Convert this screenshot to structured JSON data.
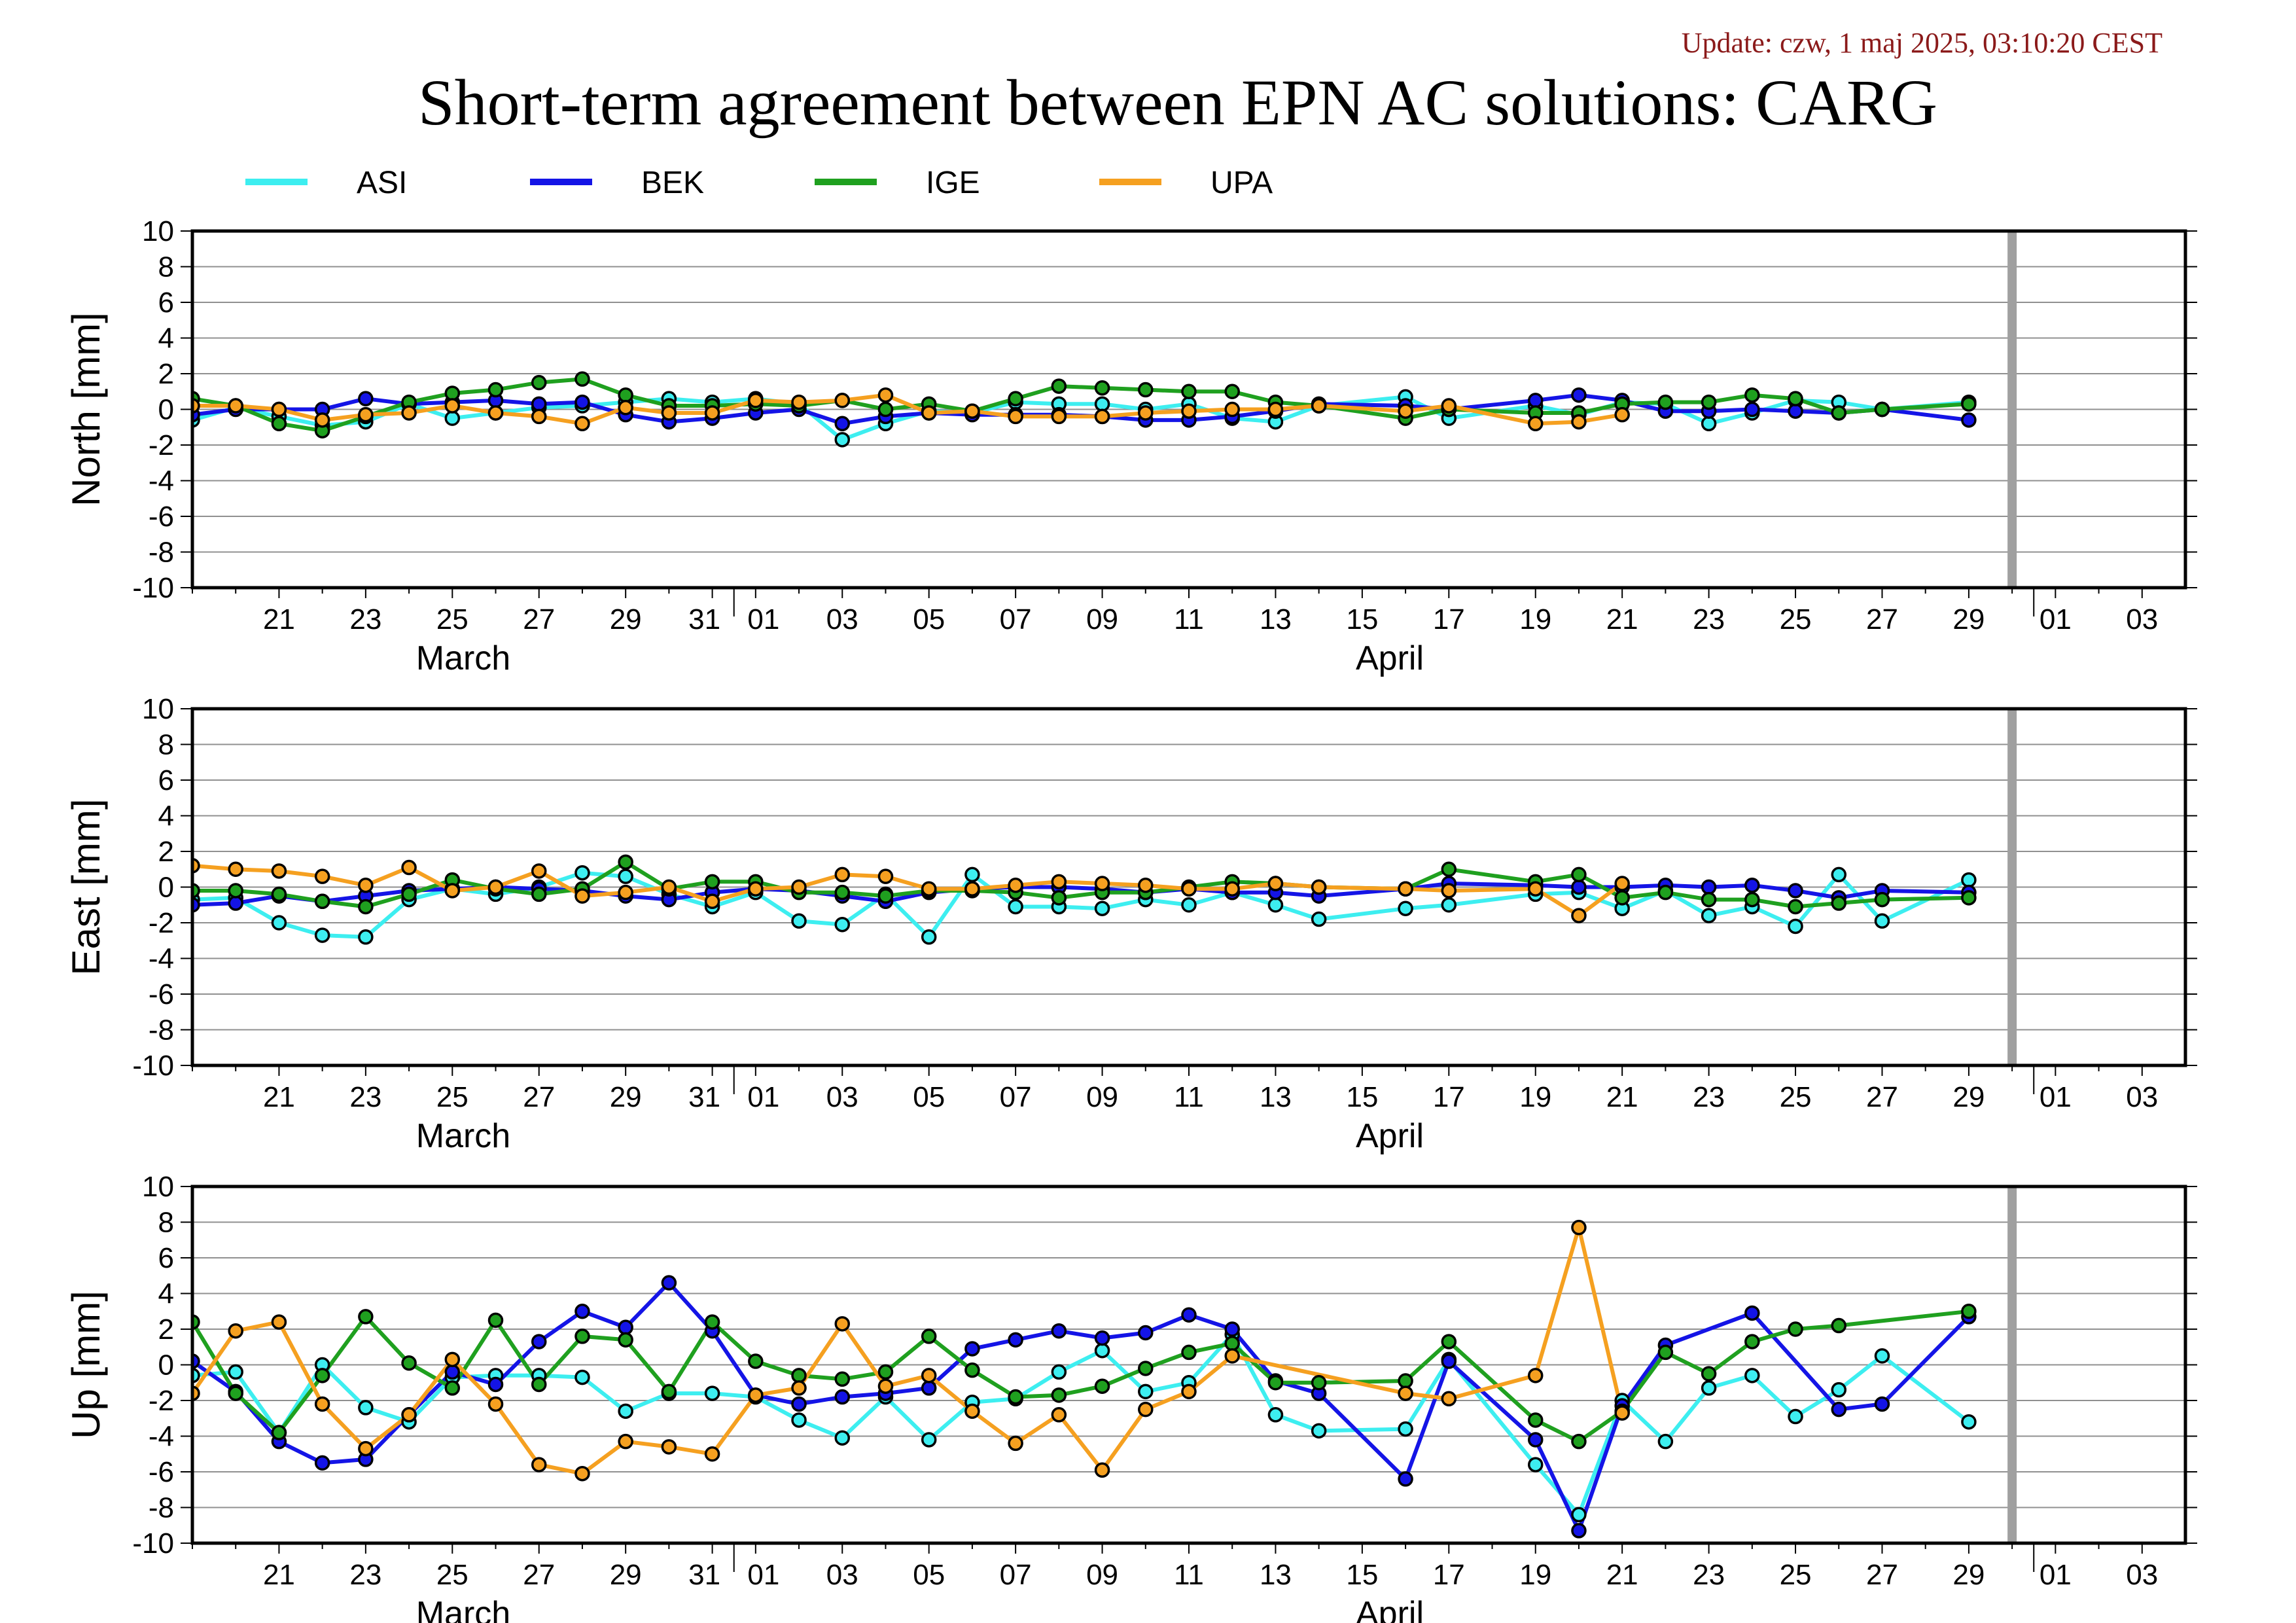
{
  "header": {
    "update": "Update: czw, 1 maj 2025, 03:10:20 CEST",
    "title": "Short-term agreement between EPN AC solutions: CARG"
  },
  "colors": {
    "ASI": "#3deef0",
    "BEK": "#1414e6",
    "IGE": "#1fa01f",
    "UPA": "#f5a020",
    "grid": "#909090",
    "frame": "#000000",
    "data_end_marker": "#a0a0a0"
  },
  "chart_data": {
    "type": "line",
    "series_names": [
      "ASI",
      "BEK",
      "IGE",
      "UPA"
    ],
    "x_range": [
      "2025-03-19",
      "2025-05-04"
    ],
    "data_end": "2025-04-30",
    "y_range": [
      -10,
      10
    ],
    "y_ticks": [
      10,
      8,
      6,
      4,
      2,
      0,
      -2,
      -4,
      -6,
      -8,
      -10
    ],
    "x_day_ticks": [
      "21",
      "23",
      "25",
      "27",
      "29",
      "31",
      "01",
      "03",
      "05",
      "07",
      "09",
      "11",
      "13",
      "15",
      "17",
      "19",
      "21",
      "23",
      "25",
      "27",
      "29",
      "01",
      "03"
    ],
    "x_month_labels": [
      "March",
      "April"
    ],
    "grid": "horizontal",
    "legend_position": "top",
    "dates": [
      "2025-03-19",
      "2025-03-20",
      "2025-03-21",
      "2025-03-22",
      "2025-03-23",
      "2025-03-24",
      "2025-03-25",
      "2025-03-26",
      "2025-03-27",
      "2025-03-28",
      "2025-03-29",
      "2025-03-30",
      "2025-03-31",
      "2025-04-01",
      "2025-04-02",
      "2025-04-03",
      "2025-04-04",
      "2025-04-05",
      "2025-04-06",
      "2025-04-07",
      "2025-04-08",
      "2025-04-09",
      "2025-04-10",
      "2025-04-11",
      "2025-04-12",
      "2025-04-13",
      "2025-04-14",
      "2025-04-15",
      "2025-04-16",
      "2025-04-17",
      "2025-04-18",
      "2025-04-19",
      "2025-04-20",
      "2025-04-21",
      "2025-04-22",
      "2025-04-23",
      "2025-04-24",
      "2025-04-25",
      "2025-04-26",
      "2025-04-27",
      "2025-04-28",
      "2025-04-29"
    ],
    "panels": [
      {
        "ylabel": "North [mm]",
        "series": [
          {
            "name": "ASI",
            "values": [
              -0.6,
              0.1,
              -0.4,
              -0.9,
              -0.7,
              0.3,
              -0.5,
              -0.2,
              0.1,
              0.2,
              0.4,
              0.6,
              0.4,
              0.6,
              0.3,
              -1.7,
              -0.8,
              -0.1,
              -0.2,
              0.4,
              0.3,
              0.3,
              0.0,
              0.3,
              -0.5,
              -0.7,
              0.2,
              null,
              0.7,
              -0.5,
              null,
              0.2,
              -0.3,
              0.4,
              0.3,
              -0.8,
              -0.2,
              0.5,
              0.4,
              0.0,
              null,
              0.4
            ]
          },
          {
            "name": "BEK",
            "values": [
              -0.3,
              0.0,
              0.0,
              0.0,
              0.6,
              0.3,
              0.4,
              0.5,
              0.3,
              0.4,
              -0.3,
              -0.7,
              -0.5,
              -0.2,
              0.0,
              -0.8,
              -0.4,
              -0.2,
              -0.3,
              -0.3,
              -0.3,
              -0.4,
              -0.6,
              -0.6,
              -0.4,
              -0.1,
              0.3,
              null,
              0.2,
              0.0,
              null,
              0.5,
              0.8,
              0.5,
              -0.1,
              -0.1,
              0.0,
              -0.1,
              -0.2,
              0.0,
              null,
              -0.6
            ]
          },
          {
            "name": "IGE",
            "values": [
              0.6,
              0.2,
              -0.8,
              -1.2,
              -0.4,
              0.4,
              0.9,
              1.1,
              1.5,
              1.7,
              0.8,
              0.2,
              0.2,
              0.3,
              0.2,
              0.5,
              0.0,
              0.3,
              -0.1,
              0.6,
              1.3,
              1.2,
              1.1,
              1.0,
              1.0,
              0.4,
              0.2,
              null,
              -0.5,
              0.0,
              null,
              -0.2,
              -0.2,
              0.3,
              0.4,
              0.4,
              0.8,
              0.6,
              -0.2,
              0.0,
              null,
              0.3
            ]
          },
          {
            "name": "UPA",
            "values": [
              0.2,
              0.2,
              0.0,
              -0.6,
              -0.3,
              -0.2,
              0.2,
              -0.2,
              -0.4,
              -0.8,
              0.1,
              -0.2,
              -0.2,
              0.5,
              0.4,
              0.5,
              0.8,
              -0.2,
              -0.1,
              -0.4,
              -0.4,
              -0.4,
              -0.2,
              -0.1,
              0.0,
              0.0,
              0.2,
              null,
              -0.1,
              0.2,
              null,
              -0.8,
              -0.7,
              -0.3,
              null,
              null,
              null,
              null,
              null,
              null,
              null,
              null
            ]
          }
        ]
      },
      {
        "ylabel": "East [mm]",
        "series": [
          {
            "name": "ASI",
            "values": [
              -0.7,
              -0.6,
              -2.0,
              -2.7,
              -2.8,
              -0.7,
              -0.1,
              -0.4,
              0.0,
              0.8,
              0.6,
              -0.4,
              -1.1,
              -0.3,
              -1.9,
              -2.1,
              -0.4,
              -2.8,
              0.7,
              -1.1,
              -1.1,
              -1.2,
              -0.7,
              -1.0,
              -0.3,
              -1.0,
              -1.8,
              null,
              -1.2,
              -1.0,
              null,
              -0.4,
              -0.3,
              -1.2,
              -0.2,
              -1.6,
              -1.1,
              -2.2,
              0.7,
              -1.9,
              null,
              0.4
            ]
          },
          {
            "name": "BEK",
            "values": [
              -1.0,
              -0.9,
              -0.5,
              -0.8,
              -0.5,
              -0.2,
              -0.1,
              0.0,
              -0.1,
              -0.2,
              -0.5,
              -0.7,
              -0.3,
              -0.1,
              -0.2,
              -0.5,
              -0.8,
              -0.3,
              -0.1,
              0.0,
              0.0,
              -0.1,
              -0.3,
              -0.1,
              -0.3,
              -0.3,
              -0.5,
              null,
              -0.1,
              0.2,
              null,
              0.1,
              0.0,
              0.0,
              0.1,
              0.0,
              0.1,
              -0.2,
              -0.6,
              -0.2,
              null,
              -0.3
            ]
          },
          {
            "name": "IGE",
            "values": [
              -0.2,
              -0.2,
              -0.4,
              -0.8,
              -1.1,
              -0.4,
              0.4,
              -0.1,
              -0.4,
              -0.1,
              1.4,
              -0.1,
              0.3,
              0.3,
              -0.3,
              -0.3,
              -0.5,
              -0.2,
              -0.2,
              -0.3,
              -0.6,
              -0.3,
              -0.3,
              0.0,
              0.3,
              0.2,
              0.0,
              null,
              -0.1,
              1.0,
              null,
              0.3,
              0.7,
              -0.6,
              -0.3,
              -0.7,
              -0.7,
              -1.1,
              -0.9,
              -0.7,
              null,
              -0.6
            ]
          },
          {
            "name": "UPA",
            "values": [
              1.2,
              1.0,
              0.9,
              0.6,
              0.1,
              1.1,
              -0.2,
              0.0,
              0.9,
              -0.5,
              -0.3,
              0.0,
              -0.8,
              -0.1,
              0.0,
              0.7,
              0.6,
              -0.1,
              -0.1,
              0.1,
              0.3,
              0.2,
              0.1,
              -0.1,
              -0.1,
              0.2,
              0.0,
              null,
              -0.1,
              -0.2,
              null,
              -0.1,
              -1.6,
              0.2,
              null,
              null,
              null,
              null,
              null,
              null,
              null,
              null
            ]
          }
        ]
      },
      {
        "ylabel": "Up [mm]",
        "series": [
          {
            "name": "ASI",
            "values": [
              -0.6,
              -0.4,
              -3.8,
              0.0,
              -2.4,
              -3.2,
              -0.7,
              -0.6,
              -0.6,
              -0.7,
              -2.6,
              -1.6,
              -1.6,
              -1.8,
              -3.1,
              -4.1,
              -1.8,
              -4.2,
              -2.1,
              -1.9,
              -0.4,
              0.8,
              -1.5,
              -1.0,
              1.7,
              -2.8,
              -3.7,
              null,
              -3.6,
              0.3,
              null,
              -5.6,
              -8.4,
              -2.0,
              -4.3,
              -1.3,
              -0.6,
              -2.9,
              -1.4,
              0.5,
              null,
              -3.2
            ]
          },
          {
            "name": "BEK",
            "values": [
              0.2,
              -1.5,
              -4.3,
              -5.5,
              -5.3,
              -2.8,
              -0.4,
              -1.1,
              1.3,
              3.0,
              2.1,
              4.6,
              1.9,
              -1.7,
              -2.2,
              -1.8,
              -1.6,
              -1.3,
              0.9,
              1.4,
              1.9,
              1.5,
              1.8,
              2.8,
              2.0,
              -0.9,
              -1.6,
              null,
              -6.4,
              0.2,
              null,
              -4.2,
              -9.3,
              -2.3,
              1.1,
              null,
              2.9,
              null,
              -2.5,
              -2.2,
              null,
              2.7
            ]
          },
          {
            "name": "IGE",
            "values": [
              2.4,
              -1.6,
              -3.8,
              -0.6,
              2.7,
              0.1,
              -1.3,
              2.5,
              -1.1,
              1.6,
              1.4,
              -1.5,
              2.4,
              0.2,
              -0.6,
              -0.8,
              -0.4,
              1.6,
              -0.3,
              -1.8,
              -1.7,
              -1.2,
              -0.2,
              0.7,
              1.2,
              -1.0,
              -1.0,
              null,
              -0.9,
              1.3,
              null,
              -3.1,
              -4.3,
              -2.6,
              0.7,
              -0.5,
              1.3,
              2.0,
              2.2,
              null,
              null,
              3.0
            ]
          },
          {
            "name": "UPA",
            "values": [
              -1.6,
              1.9,
              2.4,
              -2.2,
              -4.7,
              -2.8,
              0.3,
              -2.2,
              -5.6,
              -6.1,
              -4.3,
              -4.6,
              -5.0,
              -1.7,
              -1.3,
              2.3,
              -1.2,
              -0.6,
              -2.6,
              -4.4,
              -2.8,
              -5.9,
              -2.5,
              -1.5,
              0.5,
              null,
              null,
              null,
              -1.6,
              -1.9,
              null,
              -0.6,
              7.7,
              -2.7,
              null,
              null,
              null,
              null,
              null,
              null,
              null,
              null
            ]
          }
        ]
      }
    ]
  }
}
